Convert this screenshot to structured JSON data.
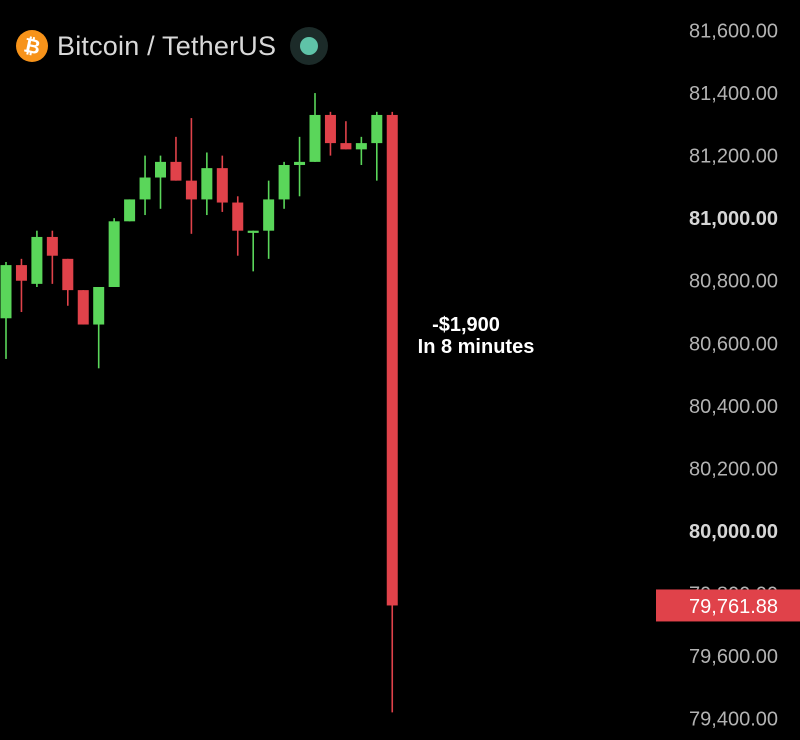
{
  "header": {
    "coin_icon": "bitcoin-icon",
    "coin_symbol": "₿",
    "pair": "Bitcoin / TetherUS",
    "status_color": "#5fc3a8"
  },
  "colors": {
    "up": "#5ad65a",
    "down": "#e0424a",
    "axis_text": "#b3b3b3",
    "axis_text_bold": "#d6d6d6",
    "price_tag_bg": "#e0424a"
  },
  "chart_data": {
    "type": "candlestick",
    "ylim": [
      79400,
      81640
    ],
    "y_ticks": [
      {
        "value": 81600,
        "label": "81,600.00",
        "bold": false
      },
      {
        "value": 81400,
        "label": "81,400.00",
        "bold": false
      },
      {
        "value": 81200,
        "label": "81,200.00",
        "bold": false
      },
      {
        "value": 81000,
        "label": "81,000.00",
        "bold": true
      },
      {
        "value": 80800,
        "label": "80,800.00",
        "bold": false
      },
      {
        "value": 80600,
        "label": "80,600.00",
        "bold": false
      },
      {
        "value": 80400,
        "label": "80,400.00",
        "bold": false
      },
      {
        "value": 80200,
        "label": "80,200.00",
        "bold": false
      },
      {
        "value": 80000,
        "label": "80,000.00",
        "bold": true
      },
      {
        "value": 79800,
        "label": "79,800.00",
        "bold": false
      },
      {
        "value": 79600,
        "label": "79,600.00",
        "bold": false
      },
      {
        "value": 79400,
        "label": "79,400.00",
        "bold": false
      }
    ],
    "current_price": {
      "value": 79761.88,
      "label": "79,761.88"
    },
    "annotation": {
      "line1": "-$1,900",
      "line2": "In 8 minutes"
    },
    "candles": [
      {
        "o": 80680,
        "h": 80860,
        "l": 80550,
        "c": 80850
      },
      {
        "o": 80850,
        "h": 80870,
        "l": 80700,
        "c": 80800
      },
      {
        "o": 80790,
        "h": 80960,
        "l": 80780,
        "c": 80940
      },
      {
        "o": 80940,
        "h": 80960,
        "l": 80790,
        "c": 80880
      },
      {
        "o": 80870,
        "h": 80870,
        "l": 80720,
        "c": 80770
      },
      {
        "o": 80770,
        "h": 80770,
        "l": 80660,
        "c": 80660
      },
      {
        "o": 80660,
        "h": 80780,
        "l": 80520,
        "c": 80780
      },
      {
        "o": 80780,
        "h": 81000,
        "l": 80780,
        "c": 80990
      },
      {
        "o": 80990,
        "h": 81060,
        "l": 80990,
        "c": 81060
      },
      {
        "o": 81060,
        "h": 81200,
        "l": 81010,
        "c": 81130
      },
      {
        "o": 81130,
        "h": 81200,
        "l": 81030,
        "c": 81180
      },
      {
        "o": 81180,
        "h": 81260,
        "l": 81120,
        "c": 81120
      },
      {
        "o": 81120,
        "h": 81320,
        "l": 80950,
        "c": 81060
      },
      {
        "o": 81060,
        "h": 81210,
        "l": 81010,
        "c": 81160
      },
      {
        "o": 81160,
        "h": 81200,
        "l": 81020,
        "c": 81050
      },
      {
        "o": 81050,
        "h": 81070,
        "l": 80880,
        "c": 80960
      },
      {
        "o": 80960,
        "h": 80960,
        "l": 80830,
        "c": 80960
      },
      {
        "o": 80960,
        "h": 81120,
        "l": 80870,
        "c": 81060
      },
      {
        "o": 81060,
        "h": 81180,
        "l": 81030,
        "c": 81170
      },
      {
        "o": 81170,
        "h": 81260,
        "l": 81070,
        "c": 81180
      },
      {
        "o": 81180,
        "h": 81400,
        "l": 81180,
        "c": 81330
      },
      {
        "o": 81330,
        "h": 81340,
        "l": 81200,
        "c": 81240
      },
      {
        "o": 81240,
        "h": 81310,
        "l": 81220,
        "c": 81220
      },
      {
        "o": 81220,
        "h": 81260,
        "l": 81170,
        "c": 81240
      },
      {
        "o": 81240,
        "h": 81340,
        "l": 81120,
        "c": 81330
      },
      {
        "o": 81330,
        "h": 81340,
        "l": 79420,
        "c": 79761.88
      }
    ]
  }
}
